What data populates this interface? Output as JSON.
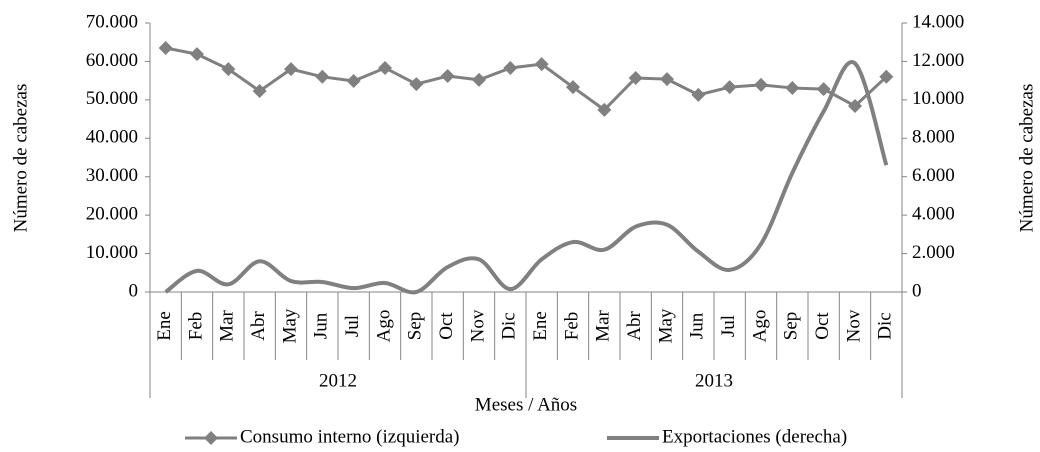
{
  "chart_data": {
    "type": "line",
    "xlabel": "Meses / Años",
    "ylabel": "Número de cabezas",
    "y2label": "Número de cabezas",
    "categories": [
      "Ene",
      "Feb",
      "Mar",
      "Abr",
      "May",
      "Jun",
      "Jul",
      "Ago",
      "Sep",
      "Oct",
      "Nov",
      "Dic",
      "Ene",
      "Feb",
      "Mar",
      "Abr",
      "May",
      "Jun",
      "Jul",
      "Ago",
      "Sep",
      "Oct",
      "Nov",
      "Dic"
    ],
    "groups": [
      "2012",
      "2013"
    ],
    "ylim": [
      0,
      70000
    ],
    "yticks": [
      0,
      {
        "value": 10000,
        "label": "10.000"
      },
      {
        "value": 20000,
        "label": "20.000"
      },
      {
        "value": 30000,
        "label": "30.000"
      },
      {
        "value": 40000,
        "label": "40.000"
      },
      {
        "value": 50000,
        "label": "50.000"
      },
      {
        "value": 60000,
        "label": "60.000"
      },
      {
        "value": 70000,
        "label": "70.000"
      }
    ],
    "y2lim": [
      0,
      14000
    ],
    "y2ticks": [
      0,
      {
        "value": 2000,
        "label": "2.000"
      },
      {
        "value": 4000,
        "label": "4.000"
      },
      {
        "value": 6000,
        "label": "6.000"
      },
      {
        "value": 8000,
        "label": "8.000"
      },
      {
        "value": 10000,
        "label": "10.000"
      },
      {
        "value": 12000,
        "label": "12.000"
      },
      {
        "value": 14000,
        "label": "14.000"
      }
    ],
    "grid": false,
    "legend": "bottom",
    "series": [
      {
        "name": "Consumo interno (izquierda)",
        "color": "#808080",
        "marker": "diamond",
        "smooth": false,
        "values": [
          63500,
          61900,
          58000,
          52300,
          58000,
          56000,
          54900,
          58300,
          54100,
          56200,
          55200,
          58300,
          59300,
          53300,
          47400,
          55700,
          55400,
          51300,
          53300,
          53900,
          53100,
          52800,
          48400,
          56000
        ]
      },
      {
        "name": "Exportaciones (derecha)",
        "color": "#808080",
        "axis": "y2",
        "smooth": true,
        "values": [
          0,
          1100,
          400,
          1600,
          570,
          520,
          200,
          470,
          0,
          1300,
          1700,
          150,
          1700,
          2600,
          2200,
          3400,
          3500,
          2100,
          1150,
          2500,
          6200,
          9400,
          11900,
          6600
        ]
      }
    ]
  }
}
